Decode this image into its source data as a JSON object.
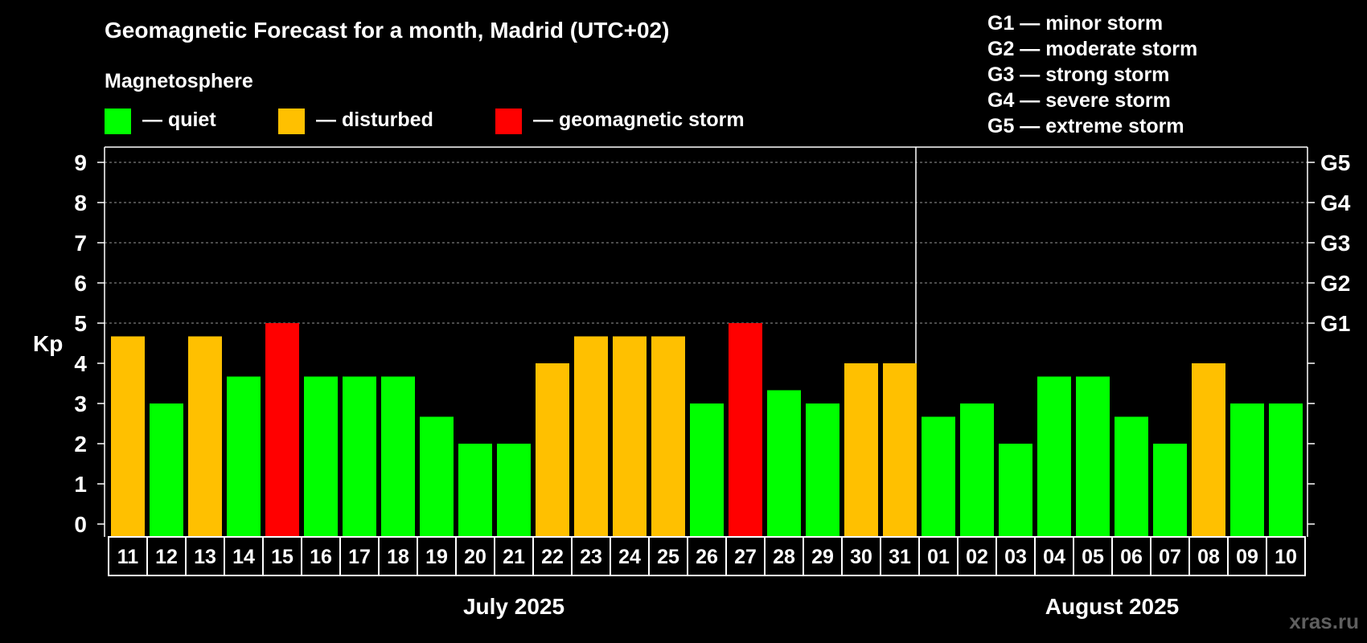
{
  "chart_data": {
    "type": "bar",
    "title": "Geomagnetic Forecast for a month, Madrid (UTC+02)",
    "ylabel": "Kp",
    "ylim": [
      0,
      9
    ],
    "yticks": [
      "0",
      "1",
      "2",
      "3",
      "4",
      "5",
      "6",
      "7",
      "8",
      "9"
    ],
    "right_axis": [
      {
        "kp": 5,
        "label": "G1"
      },
      {
        "kp": 6,
        "label": "G2"
      },
      {
        "kp": 7,
        "label": "G3"
      },
      {
        "kp": 8,
        "label": "G4"
      },
      {
        "kp": 9,
        "label": "G5"
      }
    ],
    "legend_title": "Magnetosphere",
    "legend": [
      {
        "label": "— quiet",
        "color": "#00FF00"
      },
      {
        "label": "— disturbed",
        "color": "#FFC000"
      },
      {
        "label": "— geomagnetic storm",
        "color": "#FF0000"
      }
    ],
    "storm_scale": [
      "G1 — minor storm",
      "G2 — moderate storm",
      "G3 — strong storm",
      "G4 — severe storm",
      "G5 — extreme storm"
    ],
    "months": [
      {
        "label": "July 2025",
        "days": 21
      },
      {
        "label": "August 2025",
        "days": 10
      }
    ],
    "categories": [
      "11",
      "12",
      "13",
      "14",
      "15",
      "16",
      "17",
      "18",
      "19",
      "20",
      "21",
      "22",
      "23",
      "24",
      "25",
      "26",
      "27",
      "28",
      "29",
      "30",
      "31",
      "01",
      "02",
      "03",
      "04",
      "05",
      "06",
      "07",
      "08",
      "09",
      "10"
    ],
    "values": [
      4.67,
      3,
      4.67,
      3.67,
      5,
      3.67,
      3.67,
      3.67,
      2.67,
      2,
      2,
      4,
      4.67,
      4.67,
      4.67,
      3,
      5,
      3.33,
      3,
      4,
      4,
      2.67,
      3,
      2,
      3.67,
      3.67,
      2.67,
      2,
      4,
      3,
      3
    ],
    "levels": [
      "disturbed",
      "quiet",
      "disturbed",
      "quiet",
      "storm",
      "quiet",
      "quiet",
      "quiet",
      "quiet",
      "quiet",
      "quiet",
      "disturbed",
      "disturbed",
      "disturbed",
      "disturbed",
      "quiet",
      "storm",
      "quiet",
      "quiet",
      "disturbed",
      "disturbed",
      "quiet",
      "quiet",
      "quiet",
      "quiet",
      "quiet",
      "quiet",
      "quiet",
      "disturbed",
      "quiet",
      "quiet"
    ],
    "level_colors": {
      "quiet": "#00FF00",
      "disturbed": "#FFC000",
      "storm": "#FF0000"
    },
    "grid_color": "#999999"
  },
  "watermark": "xras.ru"
}
